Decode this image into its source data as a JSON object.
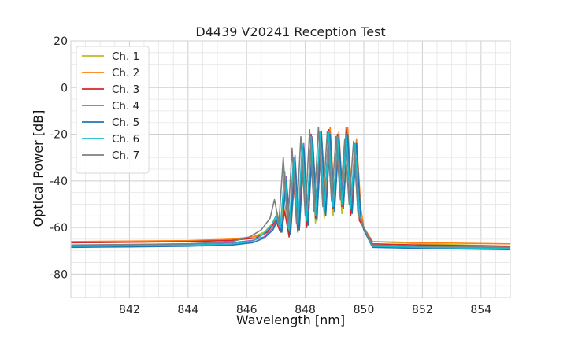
{
  "chart_data": {
    "type": "line",
    "title": "D4439 V20241 Reception Test",
    "xlabel": "Wavelength [nm]",
    "ylabel": "Optical Power [dB]",
    "xlim": [
      840,
      855
    ],
    "ylim": [
      -90,
      20
    ],
    "xticks": [
      842,
      844,
      846,
      848,
      850,
      852,
      854
    ],
    "yticks": [
      20,
      0,
      -20,
      -40,
      -60,
      -80
    ],
    "grid": true,
    "legend_position": "top-left",
    "series": [
      {
        "name": "Ch. 1",
        "color": "#bcbd22",
        "x": [
          840,
          842,
          844,
          845.5,
          846.2,
          846.6,
          846.9,
          847.05,
          847.15,
          847.3,
          847.45,
          847.6,
          847.75,
          847.9,
          848.05,
          848.2,
          848.35,
          848.5,
          848.65,
          848.8,
          848.95,
          849.1,
          849.25,
          849.4,
          849.55,
          849.7,
          849.85,
          850,
          850.3,
          852,
          855
        ],
        "y": [
          -66.5,
          -66.3,
          -66,
          -65,
          -64,
          -62,
          -58,
          -54,
          -62,
          -40,
          -64,
          -32,
          -62,
          -28,
          -60,
          -22,
          -58,
          -19,
          -56,
          -18,
          -55,
          -20,
          -54,
          -19,
          -55,
          -24,
          -57,
          -60,
          -66,
          -67,
          -68
        ]
      },
      {
        "name": "Ch. 2",
        "color": "#ff7f0e",
        "x": [
          840,
          842,
          844,
          845.5,
          846.2,
          846.6,
          846.9,
          847.05,
          847.2,
          847.35,
          847.5,
          847.65,
          847.8,
          847.95,
          848.1,
          848.25,
          848.4,
          848.55,
          848.7,
          848.85,
          849,
          849.15,
          849.3,
          849.45,
          849.6,
          849.75,
          849.9,
          850,
          850.3,
          852,
          855
        ],
        "y": [
          -66,
          -65.8,
          -65.6,
          -65,
          -64,
          -63,
          -59,
          -55,
          -61,
          -50,
          -62,
          -37,
          -60,
          -30,
          -58,
          -22,
          -56,
          -19,
          -48,
          -17,
          -50,
          -19,
          -52,
          -17,
          -50,
          -22,
          -52,
          -60,
          -66,
          -66.5,
          -67
        ]
      },
      {
        "name": "Ch. 3",
        "color": "#d62728",
        "x": [
          840,
          842,
          844,
          845.5,
          846.3,
          846.7,
          847,
          847.15,
          847.3,
          847.45,
          847.6,
          847.75,
          847.9,
          848.05,
          848.2,
          848.35,
          848.5,
          848.65,
          848.8,
          848.95,
          849.1,
          849.25,
          849.4,
          849.55,
          849.7,
          849.85,
          850,
          850.3,
          852,
          855
        ],
        "y": [
          -66.5,
          -66.3,
          -66,
          -65.5,
          -64.5,
          -62,
          -57,
          -62,
          -53,
          -64,
          -40,
          -62,
          -29,
          -60,
          -20,
          -56,
          -23,
          -53,
          -18,
          -52,
          -20,
          -51,
          -17,
          -55,
          -24,
          -57,
          -60,
          -67,
          -67.5,
          -68
        ]
      },
      {
        "name": "Ch. 4",
        "color": "#9467bd",
        "x": [
          840,
          842,
          844,
          845.5,
          846.2,
          846.6,
          846.9,
          847.05,
          847.2,
          847.35,
          847.5,
          847.65,
          847.8,
          847.95,
          848.1,
          848.25,
          848.4,
          848.55,
          848.7,
          848.85,
          849,
          849.15,
          849.3,
          849.45,
          849.6,
          849.75,
          849.9,
          850,
          850.3,
          852,
          855
        ],
        "y": [
          -67.5,
          -67.3,
          -67,
          -66.5,
          -65.5,
          -64,
          -60,
          -56,
          -61,
          -38,
          -62,
          -29,
          -60,
          -24,
          -58,
          -21,
          -56,
          -20,
          -54,
          -20,
          -52,
          -21,
          -51,
          -22,
          -53,
          -24,
          -56,
          -60,
          -68,
          -68.5,
          -69
        ]
      },
      {
        "name": "Ch. 5",
        "color": "#1f77b4",
        "x": [
          840,
          842,
          844,
          845.5,
          846.2,
          846.6,
          846.9,
          847.05,
          847.2,
          847.35,
          847.5,
          847.65,
          847.8,
          847.95,
          848.1,
          848.25,
          848.4,
          848.55,
          848.7,
          848.85,
          849,
          849.15,
          849.3,
          849.45,
          849.6,
          849.75,
          849.9,
          850,
          850.3,
          852,
          855
        ],
        "y": [
          -68.5,
          -68.3,
          -68,
          -67.5,
          -66.5,
          -64.5,
          -61,
          -57,
          -62,
          -40,
          -63,
          -32,
          -61,
          -26,
          -59,
          -22,
          -57,
          -19,
          -55,
          -20,
          -53,
          -22,
          -52,
          -20,
          -54,
          -24,
          -57,
          -61,
          -68.5,
          -69,
          -69.5
        ]
      },
      {
        "name": "Ch. 6",
        "color": "#17becf",
        "x": [
          840,
          842,
          844,
          845.5,
          846.2,
          846.55,
          846.85,
          847,
          847.15,
          847.3,
          847.45,
          847.6,
          847.75,
          847.9,
          848.05,
          848.2,
          848.35,
          848.5,
          848.65,
          848.8,
          848.95,
          849.1,
          849.25,
          849.4,
          849.55,
          849.7,
          849.85,
          850,
          850.3,
          852,
          855
        ],
        "y": [
          -68,
          -67.8,
          -67.5,
          -67,
          -66,
          -63,
          -59,
          -55,
          -60,
          -36,
          -61,
          -30,
          -59,
          -24,
          -57,
          -21,
          -55,
          -19,
          -53,
          -19,
          -51,
          -21,
          -50,
          -20,
          -52,
          -24,
          -55,
          -60,
          -68,
          -68.5,
          -69
        ]
      },
      {
        "name": "Ch. 7",
        "color": "#7f7f7f",
        "x": [
          840,
          842,
          844,
          845.5,
          846.1,
          846.5,
          846.8,
          846.95,
          847.1,
          847.25,
          847.4,
          847.55,
          847.7,
          847.85,
          848,
          848.15,
          848.3,
          848.45,
          848.6,
          848.75,
          848.9,
          849.05,
          849.2,
          849.35,
          849.5,
          849.65,
          849.8,
          850,
          850.3,
          852,
          855
        ],
        "y": [
          -67.5,
          -67.3,
          -67,
          -66,
          -64,
          -61,
          -56,
          -48,
          -58,
          -30,
          -60,
          -26,
          -58,
          -21,
          -55,
          -18,
          -53,
          -17,
          -51,
          -19,
          -49,
          -21,
          -48,
          -22,
          -50,
          -23,
          -54,
          -60,
          -67.5,
          -68,
          -68.5
        ]
      }
    ]
  }
}
